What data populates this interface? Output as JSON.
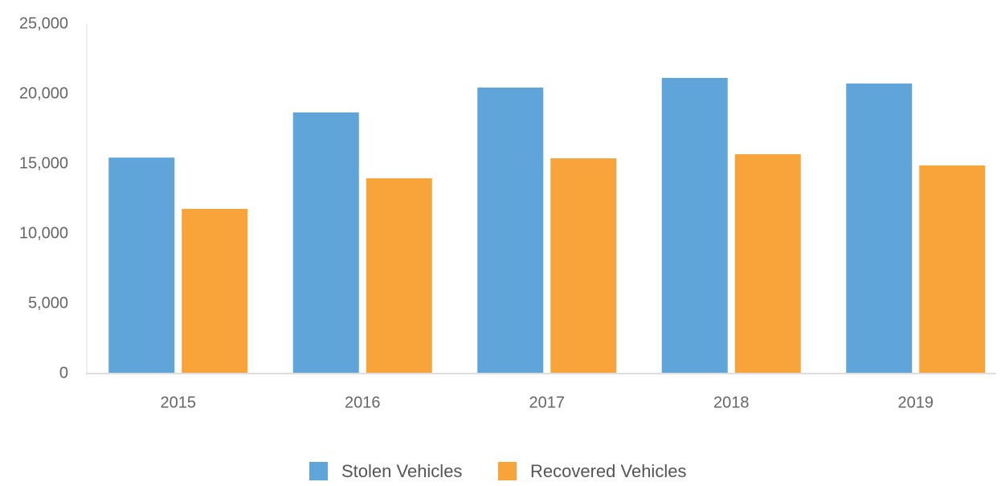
{
  "chart_data": {
    "type": "bar",
    "categories": [
      "2015",
      "2016",
      "2017",
      "2018",
      "2019"
    ],
    "series": [
      {
        "name": "Stolen Vehicles",
        "color": "#5fa5da",
        "values": [
          15450,
          18680,
          20460,
          21150,
          20750
        ]
      },
      {
        "name": "Recovered Vehicles",
        "color": "#f9a43b",
        "values": [
          11780,
          13970,
          15400,
          15690,
          14890
        ]
      }
    ],
    "ylim": [
      0,
      25000
    ],
    "yticks": [
      0,
      {
        "value": 5000,
        "label": "5,000"
      },
      {
        "value": 10000,
        "label": "10,000"
      },
      {
        "value": 15000,
        "label": "15,000"
      },
      {
        "value": 20000,
        "label": "20,000"
      },
      {
        "value": 25000,
        "label": "25,000"
      }
    ],
    "legend": "bottom"
  }
}
